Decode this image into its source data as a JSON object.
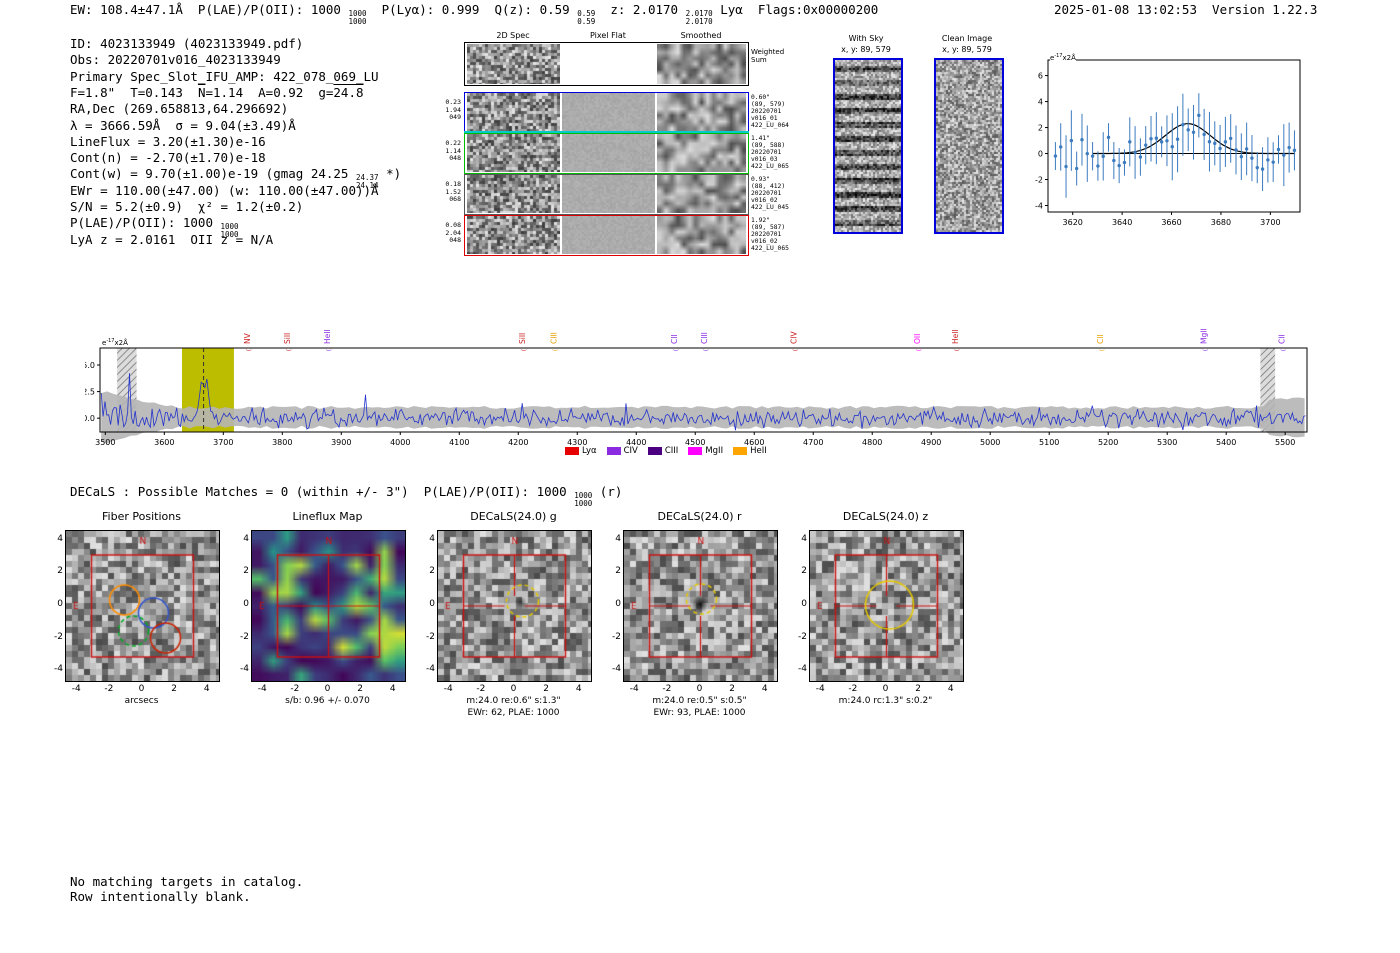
{
  "meta": {
    "stamp": "2025-01-08 13:02:53  Version 1.22.3"
  },
  "header": {
    "segments": [
      {
        "t": "EW: 108.4±47.1Å  P(LAE)/P(OII): 1000 "
      },
      {
        "stack": [
          "1000",
          "1000"
        ]
      },
      {
        "t": "  P(Lyα): 0.999  Q(z): 0.59 "
      },
      {
        "stack": [
          "0.59",
          "0.59"
        ]
      },
      {
        "t": "  z: 2.0170 "
      },
      {
        "stack": [
          "2.0170",
          "2.0170"
        ]
      },
      {
        "t": " Lyα  Flags:0x00000200"
      }
    ]
  },
  "info_lines": [
    [
      {
        "t": "ID: 4023133949 (4023133949.pdf)"
      }
    ],
    [
      {
        "t": "Obs: 20220701v016_4023133949"
      }
    ],
    [
      {
        "t": "Primary Spec_Slot_IFU_AMP: 422_078_069_LU"
      }
    ],
    [
      {
        "t": "F=1.8\"  T=0.143  "
      },
      {
        "t": "N",
        "over": true
      },
      {
        "t": "=1.14  A=0.92  g="
      },
      {
        "t": "24.8",
        "over": true
      }
    ],
    [
      {
        "t": "RA,Dec (269.658813,64.296692)"
      }
    ],
    [
      {
        "t": "λ = 3666.59Å  σ = 9.04(±3.49)Å"
      }
    ],
    [
      {
        "t": "LineFlux = 3.20(±1.30)e-16"
      }
    ],
    [
      {
        "t": "Cont(n) = -2.70(±1.70)e-18"
      }
    ],
    [
      {
        "t": "Cont(w) = 9.70(±1.00)e-19 (gmag 24.25 "
      },
      {
        "stack": [
          "24.37",
          "24.14"
        ]
      },
      {
        "t": " *)"
      }
    ],
    [
      {
        "t": "EWr = 110.00(±47.00) (w: 110.00(±47.00))Å"
      }
    ],
    [
      {
        "t": "S/N = 5.2(±0.9)  χ² = 1.2(±0.2)"
      }
    ],
    [
      {
        "t": "P(LAE)/P(OII): 1000 "
      },
      {
        "stack": [
          "1000",
          "1000"
        ]
      }
    ],
    [
      {
        "t": "LyA z = 2.0161  OII z = N/A"
      }
    ]
  ],
  "spec2d": {
    "col_titles": [
      "2D Spec",
      "Pixel Flat",
      "Smoothed"
    ],
    "weighted_label_lines": [
      "Weighted",
      "Sum"
    ],
    "rows": [
      {
        "left": [
          "0.23",
          "1.94",
          "049"
        ],
        "right": [
          "0.60\"",
          "(89, 579)",
          "20220701",
          "v016_01",
          "422_LU_064"
        ],
        "border": "#0000dd"
      },
      {
        "left": [
          "0.22",
          "1.14",
          "048"
        ],
        "right": [
          "1.41\"",
          "(89, 588)",
          "20220701",
          "v016_03",
          "422_LU_065"
        ],
        "border": "#00bb00"
      },
      {
        "left": [
          "0.18",
          "1.52",
          "068"
        ],
        "right": [
          "0.93\"",
          "(88, 412)",
          "20220701",
          "v016_02",
          "422_LU_045"
        ],
        "border": "#555555"
      },
      {
        "left": [
          "0.08",
          "2.04",
          "048"
        ],
        "right": [
          "1.92\"",
          "(89, 587)",
          "20220701",
          "v016_02",
          "422_LU_065"
        ],
        "border": "#dd0000"
      }
    ]
  },
  "sky_panels": {
    "with_sky": {
      "title": "With Sky",
      "coords": "x, y: 89, 579"
    },
    "clean": {
      "title": "Clean Image",
      "coords": "x, y: 89, 579"
    }
  },
  "decals_line": [
    {
      "t": "DECaLS : Possible Matches = 0 (within +/- 3\")  P(LAE)/P(OII): 1000 "
    },
    {
      "stack": [
        "1000",
        "1000"
      ]
    },
    {
      "t": " (r)"
    }
  ],
  "cutouts": {
    "axis_ticks": [
      -4,
      -2,
      0,
      2,
      4
    ],
    "panels": [
      {
        "title": "Fiber Positions",
        "captions": [
          "arcsecs"
        ],
        "compass": {
          "n": "N",
          "e": "E"
        }
      },
      {
        "title": "Lineflux Map",
        "captions": [
          "s/b: 0.96 +/- 0.070"
        ],
        "compass": {
          "n": "N",
          "e": "E"
        }
      },
      {
        "title": "DECaLS(24.0) g",
        "captions": [
          "m:24.0 re:0.6\" s:1.3\"",
          "EWr: 62, PLAE: 1000"
        ],
        "compass": {
          "n": "N",
          "e": "E"
        }
      },
      {
        "title": "DECaLS(24.0) r",
        "captions": [
          "m:24.0 re:0.5\" s:0.5\"",
          "EWr: 93, PLAE: 1000"
        ],
        "compass": {
          "n": "N",
          "e": "E"
        }
      },
      {
        "title": "DECaLS(24.0) z",
        "captions": [
          "m:24.0 rc:1.3\" s:0.2\""
        ],
        "compass": {
          "n": "N",
          "e": "E"
        }
      }
    ]
  },
  "footer_lines": [
    "No matching targets in catalog.",
    "Row intentionally blank."
  ],
  "colors": {
    "panel_border_blue": "#0000dd",
    "row_border_green": "#00bb00",
    "row_border_red": "#dd0000",
    "cyan_divider": "#00cccc",
    "spectrum_blue": "#2433cc",
    "overlay_red": "#cc1111",
    "fiber_orange": "#ff8c00",
    "fiber_blue": "#3355cc",
    "fiber_green": "#00aa22",
    "fiber_red": "#cc2200",
    "aperture_yellow": "#e6c800",
    "highlight_band_yellow": "#bdbd00"
  },
  "chart_data": [
    {
      "name": "emission_line_fit",
      "type": "scatter",
      "title": "",
      "ylabel_units": {
        "prefix": "e",
        "sup": "-17",
        "suffix": "x2Å"
      },
      "xlim": [
        3610,
        3712
      ],
      "xticks": [
        3620,
        3640,
        3660,
        3680,
        3700
      ],
      "ylim": [
        -4.5,
        7.2
      ],
      "yticks": [
        -4,
        -2,
        0,
        2,
        4,
        6
      ],
      "fit": {
        "shape": "gaussian",
        "center": 3666.59,
        "sigma": 9.04,
        "amplitude": 2.3,
        "baseline": 0.0
      },
      "series_color": "#3b7bbf",
      "fit_color": "#000000",
      "legend_position": "none",
      "grid": false
    },
    {
      "name": "full_spectrum",
      "type": "line",
      "title": "",
      "ylabel_units": {
        "prefix": "e",
        "sup": "-17",
        "suffix": "x2Å"
      },
      "xlim": [
        3491,
        5537
      ],
      "xticks": [
        3500,
        3600,
        3700,
        3800,
        3900,
        4000,
        4100,
        4200,
        4300,
        4400,
        4500,
        4600,
        4700,
        4800,
        4900,
        5000,
        5100,
        5200,
        5300,
        5400,
        5500
      ],
      "ylim": [
        -1.3,
        6.6
      ],
      "yticks": [
        0.0,
        2.5,
        5.0
      ],
      "line_color": "#2433cc",
      "uncertainty_color": "#b5b5b5",
      "highlight_band": {
        "from": 3630,
        "to": 3718,
        "color": "#bdbd00"
      },
      "marked_line_wavelength": 3666.59,
      "hatched_regions": [
        [
          3520,
          3553
        ],
        [
          5458,
          5483
        ]
      ],
      "emission_markers": [
        {
          "label": "NV",
          "wavelength": 3745,
          "color": "#cc2020"
        },
        {
          "label": "SiII",
          "wavelength": 3813,
          "color": "#cc2020"
        },
        {
          "label": "HeII",
          "wavelength": 3881,
          "color": "#8a2be2"
        },
        {
          "label": "SiII",
          "wavelength": 4211,
          "color": "#cc2020"
        },
        {
          "label": "CIII",
          "wavelength": 4265,
          "color": "#e8a000"
        },
        {
          "label": "CII",
          "wavelength": 4469,
          "color": "#8a2be2"
        },
        {
          "label": "CIII",
          "wavelength": 4520,
          "color": "#8a2be2"
        },
        {
          "label": "CIV",
          "wavelength": 4672,
          "color": "#cc2020"
        },
        {
          "label": "OII",
          "wavelength": 4881,
          "color": "#ff00ff"
        },
        {
          "label": "HeII",
          "wavelength": 4945,
          "color": "#cc2020"
        },
        {
          "label": "CII",
          "wavelength": 5191,
          "color": "#e8a000"
        },
        {
          "label": "MgII",
          "wavelength": 5367,
          "color": "#8a2be2"
        },
        {
          "label": "CII",
          "wavelength": 5499,
          "color": "#8a2be2"
        }
      ],
      "legend": [
        {
          "label": "Lyα",
          "color": "#e60000"
        },
        {
          "label": "CIV",
          "color": "#8a2be2"
        },
        {
          "label": "CIII",
          "color": "#4b0082"
        },
        {
          "label": "MgII",
          "color": "#ff00ff"
        },
        {
          "label": "HeII",
          "color": "#ffa500"
        }
      ],
      "legend_position": "bottom-center",
      "grid": false
    }
  ]
}
